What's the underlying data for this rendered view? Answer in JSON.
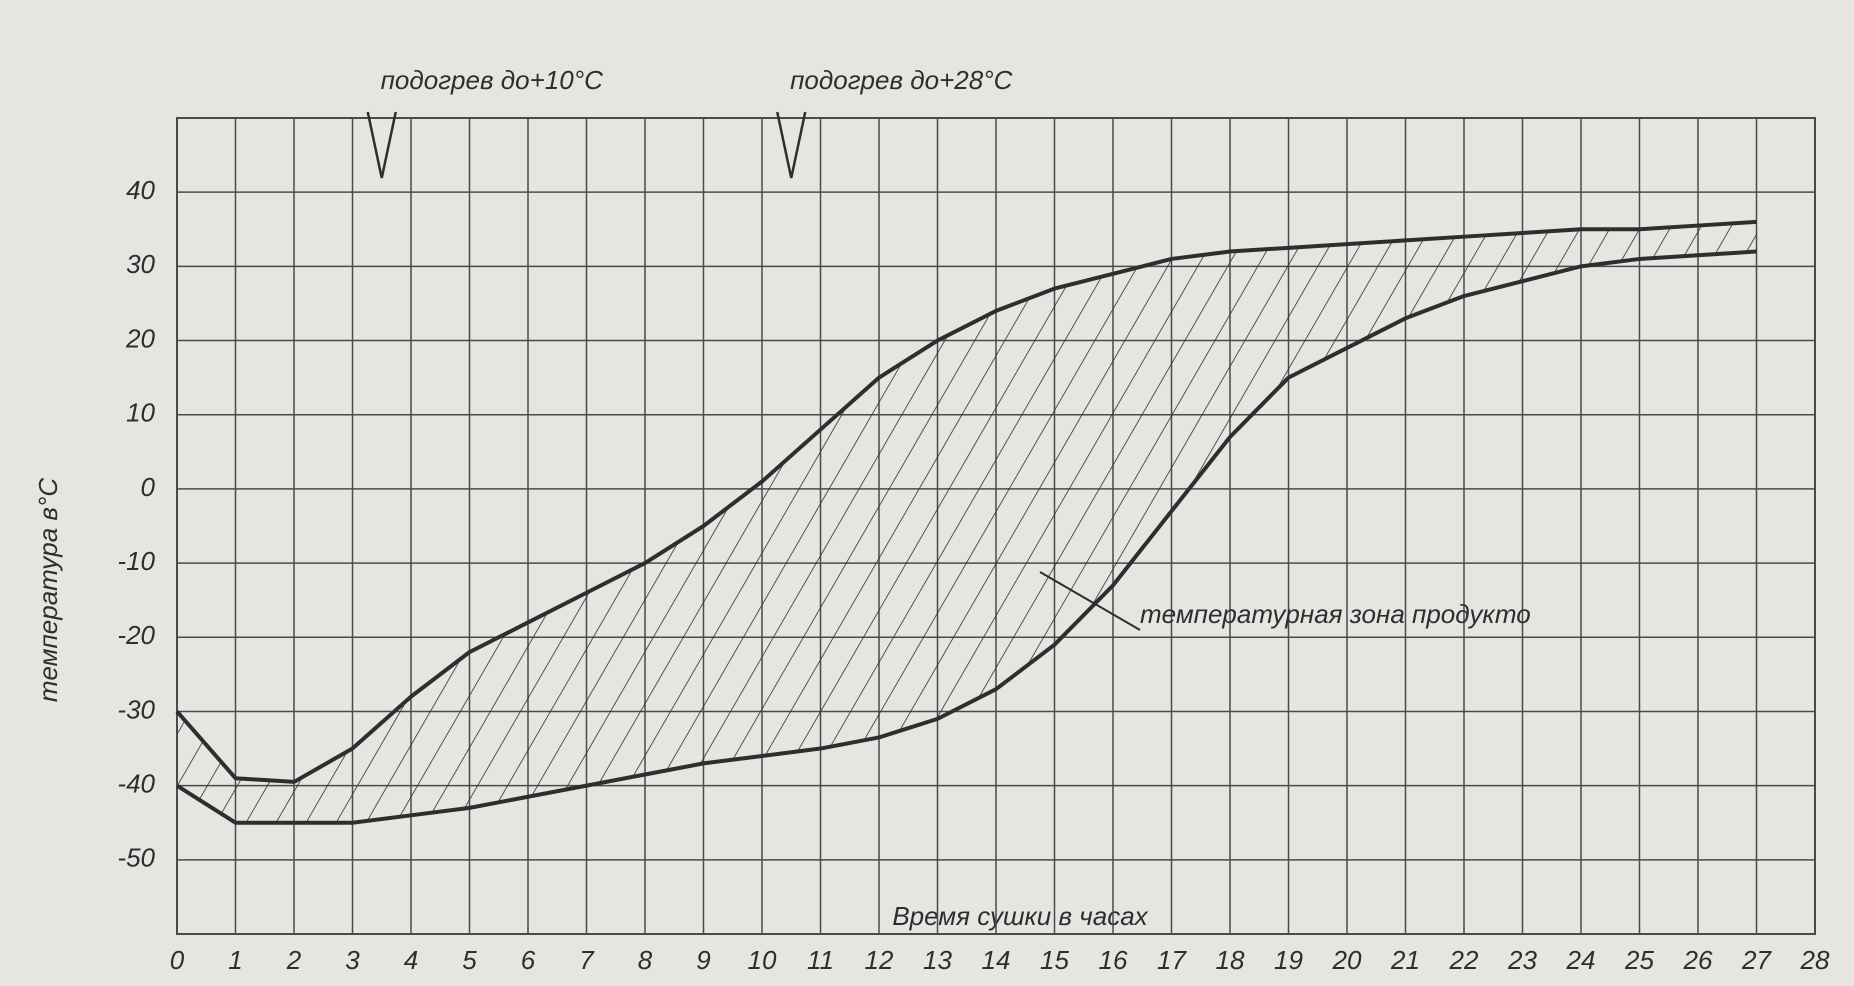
{
  "chart_data": {
    "type": "band",
    "x_label": "Время сушки в часах",
    "y_label": "температура в°С",
    "x": [
      0,
      1,
      2,
      3,
      4,
      5,
      6,
      7,
      8,
      9,
      10,
      11,
      12,
      13,
      14,
      15,
      16,
      17,
      18,
      19,
      20,
      21,
      22,
      23,
      24,
      25,
      26,
      27
    ],
    "series": [
      {
        "color": "#2e2e2e",
        "values": [
          -30,
          -39,
          -39.5,
          -35,
          -28,
          -22,
          -18,
          -14,
          -10,
          -5,
          1,
          8,
          15,
          20,
          24,
          27,
          29,
          31,
          32,
          32.5,
          33,
          33.5,
          34,
          34.5,
          35,
          35,
          35.5,
          36
        ]
      },
      {
        "color": "#2e2e2e",
        "values": [
          -40,
          -45,
          -45,
          -45,
          -44,
          -43,
          -41.5,
          -40,
          -38.5,
          -37,
          -36,
          -35,
          -33.5,
          -31,
          -27,
          -21,
          -13,
          -3,
          7,
          15,
          19,
          23,
          26,
          28,
          30,
          31,
          31.5,
          32
        ]
      }
    ],
    "xlim": [
      0,
      28
    ],
    "ylim": [
      -60,
      50
    ],
    "xticks": [
      0,
      1,
      2,
      3,
      4,
      5,
      6,
      7,
      8,
      9,
      10,
      11,
      12,
      13,
      14,
      15,
      16,
      17,
      18,
      19,
      20,
      21,
      22,
      23,
      24,
      25,
      26,
      27,
      28
    ],
    "yticks": [
      -50,
      -40,
      -30,
      -20,
      -10,
      0,
      10,
      20,
      30,
      40
    ],
    "grid": true,
    "annotations": [
      {
        "text": "подогрев до+10°С",
        "x": 3.5
      },
      {
        "text": "подогрев до+28°С",
        "x": 10.5
      }
    ],
    "area_label": "температурная зона продукто"
  }
}
